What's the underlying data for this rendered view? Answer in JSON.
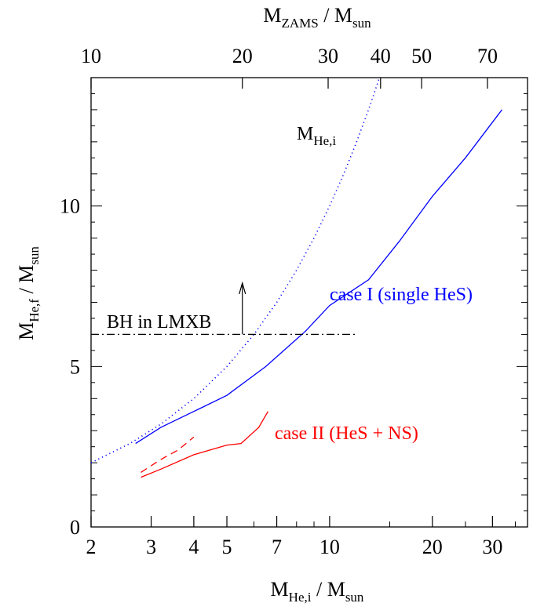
{
  "chart_data": {
    "type": "line",
    "x_scale": "log",
    "x_range": [
      2,
      38
    ],
    "y_range": [
      0,
      14
    ],
    "grid": false,
    "xlabel": {
      "main": "M",
      "sub": "He,i",
      "tail": " / M",
      "tail_sub": "sun"
    },
    "ylabel": {
      "main": "M",
      "sub": "He,f",
      "tail": " / M",
      "tail_sub": "sun"
    },
    "x2label": {
      "main": "M",
      "sub": "ZAMS",
      "tail": " / M",
      "tail_sub": "sun"
    },
    "x_ticks": [
      {
        "value": 2,
        "label": "2"
      },
      {
        "value": 3,
        "label": "3"
      },
      {
        "value": 4,
        "label": "4"
      },
      {
        "value": 5,
        "label": "5"
      },
      {
        "value": 7,
        "label": "7"
      },
      {
        "value": 10,
        "label": "10"
      },
      {
        "value": 20,
        "label": "20"
      },
      {
        "value": 30,
        "label": "30"
      }
    ],
    "y_ticks": [
      {
        "value": 0,
        "label": "0"
      },
      {
        "value": 5,
        "label": "5"
      },
      {
        "value": 10,
        "label": "10"
      }
    ],
    "x2_ticks": [
      {
        "x": 2.0,
        "label": "10"
      },
      {
        "x": 5.55,
        "label": "20"
      },
      {
        "x": 9.9,
        "label": "30"
      },
      {
        "x": 14.1,
        "label": "40"
      },
      {
        "x": 18.6,
        "label": "50"
      },
      {
        "x": 29.0,
        "label": "70"
      }
    ],
    "series": [
      {
        "name": "M",
        "name_sub": "He,i",
        "style": "dotted",
        "color": "#0000ff",
        "x": [
          2.0,
          2.6,
          3.2,
          4.0,
          5.0,
          6.0,
          7.0,
          8.0,
          9.0,
          10.0,
          11.0,
          12.0,
          13.0,
          14.0
        ],
        "y": [
          2.0,
          2.6,
          3.2,
          4.0,
          5.0,
          6.0,
          7.0,
          8.0,
          9.0,
          10.0,
          11.0,
          12.0,
          13.0,
          14.0
        ]
      },
      {
        "name": "case I (single HeS)",
        "style": "solid",
        "color": "#0000ff",
        "x": [
          2.7,
          3.2,
          4.0,
          5.0,
          6.5,
          8.5,
          10.0,
          13.0,
          16.0,
          20.0,
          25.0,
          32.0
        ],
        "y": [
          2.6,
          3.1,
          3.6,
          4.1,
          5.0,
          6.1,
          6.9,
          7.7,
          8.9,
          10.3,
          11.5,
          13.0
        ]
      },
      {
        "name": "case II (HeS + NS)",
        "style": "solid",
        "color": "#ff0000",
        "x": [
          2.8,
          3.2,
          4.0,
          5.0,
          5.5,
          6.2,
          6.6
        ],
        "y": [
          1.55,
          1.8,
          2.25,
          2.55,
          2.6,
          3.1,
          3.6
        ]
      },
      {
        "name": "case II (HeS + NS)",
        "style": "dashed",
        "color": "#ff0000",
        "x": [
          2.8,
          3.2,
          3.6,
          4.0
        ],
        "y": [
          1.7,
          2.1,
          2.4,
          2.8
        ]
      },
      {
        "name": "BH in LMXB",
        "style": "dashdot",
        "color": "#000000",
        "x": [
          2.0,
          12.0
        ],
        "y": [
          6.0,
          6.0
        ]
      }
    ],
    "annotations": [
      {
        "text": "BH in LMXB",
        "color": "#000000"
      },
      {
        "text": "case I (single HeS)",
        "color": "#0000ff"
      },
      {
        "text": "case II (HeS + NS)",
        "color": "#ff0000"
      }
    ],
    "arrow": {
      "x": 5.55,
      "y_from": 6.0,
      "y_to": 7.6
    }
  }
}
